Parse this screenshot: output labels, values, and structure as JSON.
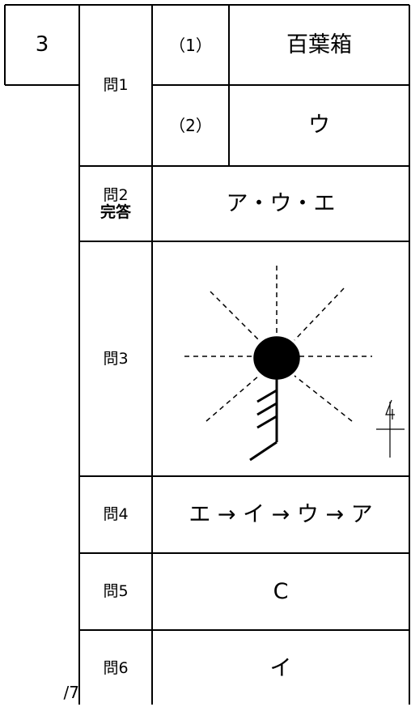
{
  "section": "3",
  "score": "/7",
  "rows": [
    {
      "label": "問1",
      "parts": [
        {
          "number": "（1）",
          "answer": "百葉箱"
        },
        {
          "number": "（2）",
          "answer": "ウ"
        }
      ]
    },
    {
      "label": "問2",
      "note": "完答",
      "answer": "ア・ウ・エ"
    },
    {
      "label": "問3"
    },
    {
      "label": "問4",
      "answer": "エ → イ → ウ → ア"
    },
    {
      "label": "問5",
      "answer": "C"
    },
    {
      "label": "問6",
      "answer": "イ"
    }
  ]
}
